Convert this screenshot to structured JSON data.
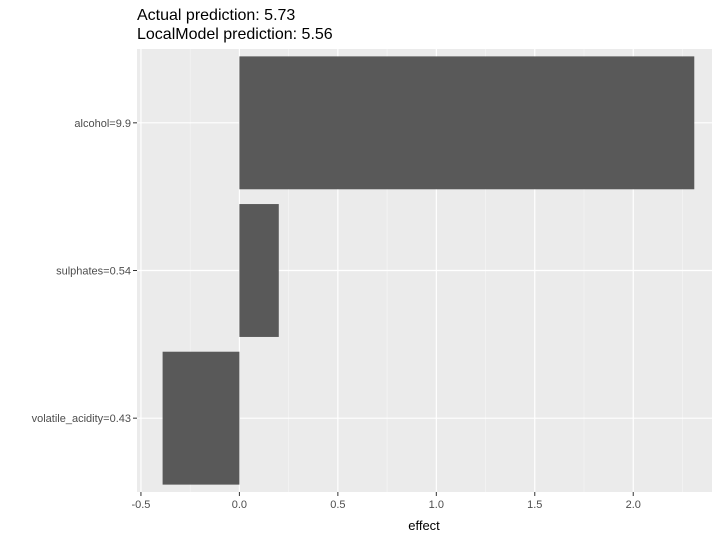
{
  "chart_data": {
    "type": "bar",
    "orientation": "horizontal",
    "title_lines": [
      "Actual prediction: 5.73",
      "LocalModel prediction: 5.56"
    ],
    "xlabel": "effect",
    "ylabel": "",
    "categories": [
      "alcohol=9.9",
      "sulphates=0.54",
      "volatile_acidity=0.43"
    ],
    "values": [
      2.31,
      0.2,
      -0.39
    ],
    "xlim": [
      -0.52,
      2.4
    ],
    "xticks": [
      -0.5,
      0.0,
      0.5,
      1.0,
      1.5,
      2.0
    ],
    "xtick_labels": [
      "-0.5",
      "0.0",
      "0.5",
      "1.0",
      "1.5",
      "2.0"
    ],
    "grid": true,
    "colors": {
      "panel": "#ebebeb",
      "grid_major": "#ffffff",
      "bar": "#595959",
      "tick_text": "#4d4d4d",
      "tick_mark": "#333333"
    }
  }
}
